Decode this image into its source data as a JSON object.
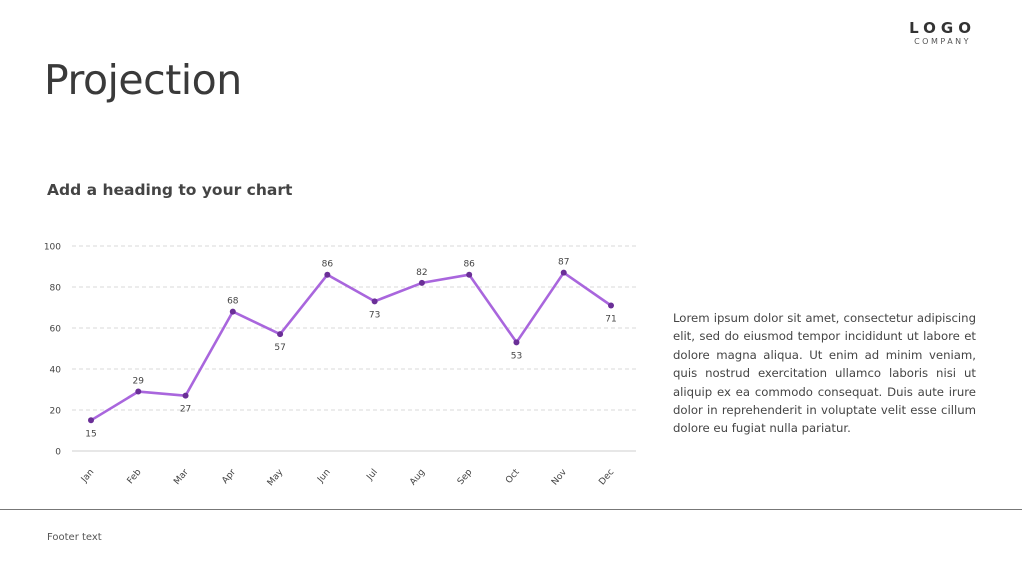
{
  "logo": {
    "main": "LOGO",
    "sub": "COMPANY"
  },
  "page": {
    "title": "Projection",
    "chart_heading": "Add a heading to your chart",
    "body_text": "Lorem ipsum dolor sit amet, consectetur adipiscing elit, sed do eiusmod tempor incididunt ut labore et dolore magna aliqua. Ut enim ad minim veniam, quis nostrud exercitation ullamco laboris nisi ut aliquip ex ea commodo consequat. Duis aute irure dolor in reprehenderit in voluptate velit esse cillum dolore eu fugiat nulla pariatur.",
    "footer": "Footer text"
  },
  "chart_data": {
    "type": "line",
    "title": "Add a heading to your chart",
    "categories": [
      "Jan",
      "Feb",
      "Mar",
      "Apr",
      "May",
      "Jun",
      "Jul",
      "Aug",
      "Sep",
      "Oct",
      "Nov",
      "Dec"
    ],
    "values": [
      15,
      29,
      27,
      68,
      57,
      86,
      73,
      82,
      86,
      53,
      87,
      71
    ],
    "ylim": [
      0,
      100
    ],
    "yticks": [
      0,
      20,
      40,
      60,
      80,
      100
    ],
    "grid": true,
    "line_color": "#a966dd",
    "marker_color": "#6a2f97",
    "data_labels": true
  }
}
